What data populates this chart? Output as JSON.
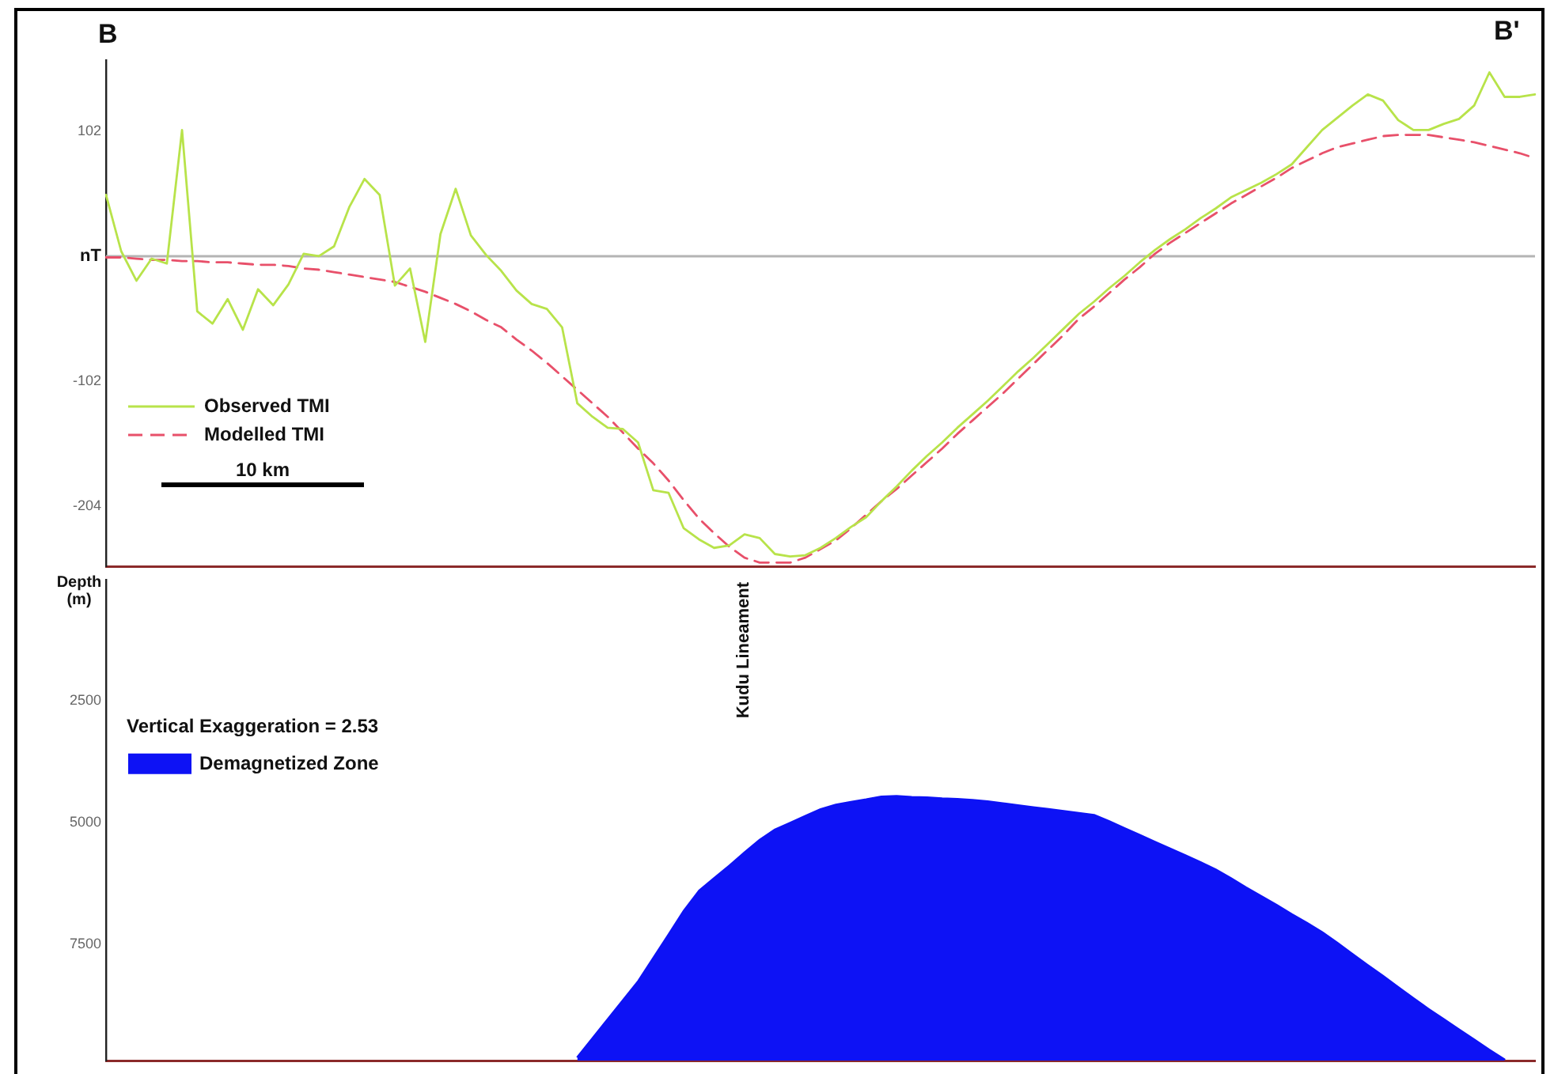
{
  "chart_data": [
    {
      "type": "line",
      "categories": [
        null,
        null,
        null,
        null,
        null,
        null,
        null,
        null,
        null,
        null,
        null,
        null,
        null,
        null,
        null,
        null,
        null,
        null,
        null,
        null,
        null,
        null,
        null,
        null,
        null,
        null,
        null,
        null,
        null,
        null,
        null,
        null,
        null,
        null,
        null,
        null,
        null,
        null,
        null,
        null,
        null,
        null,
        null,
        null,
        null,
        null,
        null,
        null,
        null,
        null,
        null,
        null,
        null,
        null,
        null,
        null,
        null,
        null,
        null,
        null,
        null,
        null,
        null,
        null,
        null,
        null,
        null,
        null,
        null,
        null,
        null,
        null,
        null,
        null,
        null,
        null,
        null,
        null,
        null,
        null,
        null,
        null,
        null,
        null,
        null,
        null,
        null,
        null,
        null,
        null,
        null,
        null,
        null,
        null,
        null
      ],
      "ylim": [
        -253,
        160
      ],
      "yticks": [
        102,
        {
          "value": 0,
          "label": "nT"
        },
        -102,
        -204
      ],
      "tick_labels": "y",
      "legend": "left",
      "annotations": [
        "B",
        "B'",
        "10 km"
      ],
      "ref_lines": [
        {
          "axis": "y",
          "value": 0,
          "color": "#b4b4b4"
        }
      ],
      "series": [
        {
          "name": "Observed TMI",
          "color": "#b8e34a",
          "line_style": "solid",
          "values": [
            50,
            4,
            -20,
            -2,
            -6,
            103,
            -45,
            -55,
            -35,
            -60,
            -27,
            -40,
            -23,
            2,
            0,
            8,
            40,
            63,
            50,
            -24,
            -10,
            -70,
            18,
            55,
            17,
            1,
            -12,
            -28,
            -39,
            -43,
            -58,
            -120,
            -131,
            -140,
            -141,
            -152,
            -191,
            -193,
            -222,
            -231,
            -238,
            -236,
            -227,
            -230,
            -243,
            -245,
            -244,
            -238,
            -230,
            -221,
            -213,
            -200,
            -188,
            -175,
            -163,
            -152,
            -140,
            -129,
            -118,
            -106,
            -94,
            -83,
            -71,
            -59,
            -47,
            -37,
            -26,
            -16,
            -5,
            5,
            14,
            22,
            31,
            39,
            48,
            54,
            60,
            67,
            75,
            89,
            103,
            113,
            123,
            132,
            127,
            111,
            103,
            103,
            108,
            112,
            123,
            150,
            130,
            130,
            132
          ]
        },
        {
          "name": "Modelled TMI",
          "color": "#e8506a",
          "line_style": "dashed",
          "values": [
            -1,
            -1,
            -2,
            -3,
            -3,
            -4,
            -4,
            -5,
            -5,
            -6,
            -7,
            -7,
            -8,
            -10,
            -11,
            -13,
            -15,
            -17,
            -19,
            -21,
            -25,
            -29,
            -34,
            -39,
            -45,
            -52,
            -58,
            -68,
            -77,
            -87,
            -98,
            -109,
            -120,
            -131,
            -144,
            -157,
            -169,
            -183,
            -199,
            -214,
            -226,
            -237,
            -246,
            -250,
            -250,
            -250,
            -246,
            -239,
            -232,
            -222,
            -211,
            -200,
            -190,
            -179,
            -168,
            -157,
            -145,
            -134,
            -123,
            -112,
            -100,
            -88,
            -76,
            -64,
            -51,
            -41,
            -30,
            -19,
            -9,
            2,
            11,
            19,
            27,
            35,
            43,
            50,
            57,
            64,
            72,
            78,
            84,
            89,
            92,
            95,
            98,
            99,
            99,
            99,
            97,
            95,
            93,
            90,
            87,
            84,
            80
          ]
        }
      ]
    },
    {
      "type": "area",
      "categories": [
        null,
        null,
        null,
        null,
        null,
        null,
        null,
        null,
        null,
        null,
        null,
        null,
        null,
        null,
        null,
        null,
        null,
        null,
        null,
        null,
        null,
        null,
        null,
        null,
        null,
        null,
        null,
        null,
        null,
        null,
        null,
        null,
        null,
        null,
        null,
        null,
        null,
        null,
        null,
        null,
        null,
        null,
        null,
        null,
        null,
        null,
        null,
        null,
        null,
        null,
        null,
        null,
        null,
        null,
        null,
        null,
        null,
        null,
        null,
        null,
        null,
        null,
        null,
        null,
        null,
        null,
        null,
        null,
        null,
        null,
        null,
        null,
        null,
        null,
        null,
        null,
        null,
        null,
        null,
        null,
        null,
        null,
        null,
        null,
        null,
        null,
        null,
        null,
        null,
        null,
        null,
        null,
        null,
        null,
        null
      ],
      "ylim": [
        9900,
        0
      ],
      "yticks": [
        2500,
        5000,
        7500
      ],
      "ylabel": "Depth (m)",
      "tick_labels": "y",
      "legend": "top left",
      "annotations": [
        "Kudu Lineament",
        "Vertical Exaggeration = 2.53"
      ],
      "series": [
        {
          "name": "Demagnetized Zone",
          "color": "#0d12f5",
          "values": [
            null,
            null,
            null,
            null,
            null,
            null,
            null,
            null,
            null,
            null,
            null,
            null,
            null,
            null,
            null,
            null,
            null,
            null,
            null,
            null,
            null,
            null,
            null,
            null,
            null,
            null,
            null,
            null,
            null,
            null,
            null,
            9820,
            9430,
            9040,
            8650,
            8260,
            7780,
            7300,
            6810,
            6400,
            6140,
            5880,
            5610,
            5350,
            5140,
            5000,
            4860,
            4720,
            4630,
            4570,
            4520,
            4460,
            4450,
            4470,
            4480,
            4500,
            4510,
            4530,
            4560,
            4600,
            4640,
            4680,
            4720,
            4760,
            4800,
            4840,
            4970,
            5110,
            5250,
            5390,
            5530,
            5670,
            5810,
            5960,
            6140,
            6330,
            6510,
            6690,
            6880,
            7060,
            7250,
            7470,
            7700,
            7930,
            8150,
            8380,
            8610,
            8830,
            9040,
            9250,
            9460,
            9670,
            9870,
            null,
            null
          ]
        }
      ]
    }
  ]
}
